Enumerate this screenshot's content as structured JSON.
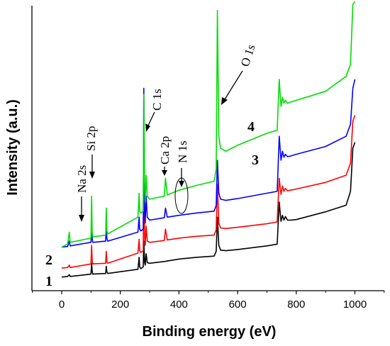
{
  "chart_data": {
    "type": "line",
    "xlabel": "Binding energy (eV)",
    "ylabel": "Intensity (a.u.)",
    "xlim": [
      -100,
      1100
    ],
    "x_ticks": [
      "0",
      "200",
      "400",
      "600",
      "800",
      "1000"
    ],
    "y_ticks_labeled": false,
    "grid": false,
    "legend": "none",
    "series": [
      {
        "name": "1",
        "color": "#000000",
        "x": [
          0,
          20,
          26,
          29,
          100,
          102,
          104,
          106,
          150,
          152,
          154,
          157,
          260,
          264,
          266,
          270,
          278,
          280,
          283,
          285,
          288,
          292,
          300,
          350,
          400,
          460,
          520,
          527,
          531,
          536,
          542,
          560,
          600,
          700,
          735,
          742,
          748,
          753,
          758,
          763,
          770,
          780,
          800,
          900,
          970,
          985,
          993,
          1000
        ],
        "y": [
          0.5,
          0.6,
          0.9,
          0.6,
          1.0,
          2.8,
          1.5,
          1.0,
          1.1,
          2.3,
          1.4,
          1.1,
          1.8,
          3.8,
          2.2,
          1.9,
          2.2,
          6.5,
          2.9,
          2.5,
          4.4,
          2.9,
          2.8,
          3.1,
          3.5,
          3.8,
          4.0,
          4.8,
          10.5,
          5.8,
          5.0,
          4.9,
          5.1,
          5.7,
          6.0,
          13.0,
          9.8,
          10.8,
          10.0,
          10.6,
          10.0,
          10.0,
          10.1,
          11.4,
          12.5,
          14.8,
          22.0,
          23.0
        ]
      },
      {
        "name": "2",
        "color": "#ff0000",
        "x": [
          0,
          20,
          26,
          29,
          100,
          102,
          104,
          106,
          150,
          152,
          154,
          157,
          260,
          264,
          266,
          270,
          278,
          280,
          283,
          285,
          288,
          292,
          300,
          350,
          354,
          360,
          400,
          460,
          520,
          527,
          531,
          536,
          542,
          560,
          600,
          700,
          735,
          742,
          748,
          753,
          758,
          763,
          770,
          780,
          800,
          900,
          970,
          985,
          993,
          1000
        ],
        "y": [
          2.0,
          2.1,
          2.5,
          2.1,
          2.7,
          5.8,
          3.3,
          2.7,
          2.8,
          4.8,
          3.1,
          2.8,
          4.5,
          6.8,
          4.9,
          4.6,
          4.9,
          19.0,
          7.0,
          5.8,
          9.0,
          6.5,
          6.3,
          6.6,
          8.5,
          6.7,
          7.0,
          7.3,
          7.5,
          8.4,
          16.0,
          9.5,
          8.7,
          8.6,
          8.8,
          9.4,
          9.7,
          17.0,
          14.3,
          15.7,
          14.8,
          15.3,
          14.9,
          15.0,
          15.2,
          16.3,
          17.5,
          19.5,
          26.5,
          27.5
        ]
      },
      {
        "name": "3",
        "color": "#0000ff",
        "x": [
          0,
          20,
          26,
          29,
          100,
          102,
          104,
          106,
          150,
          152,
          154,
          157,
          260,
          264,
          266,
          270,
          278,
          280,
          283,
          285,
          288,
          292,
          300,
          350,
          354,
          360,
          400,
          460,
          520,
          527,
          531,
          536,
          542,
          560,
          600,
          700,
          735,
          742,
          748,
          753,
          758,
          763,
          770,
          780,
          800,
          900,
          970,
          985,
          993,
          1000
        ],
        "y": [
          5.5,
          5.6,
          6.5,
          5.7,
          6.3,
          10.0,
          7.0,
          6.3,
          6.5,
          9.0,
          7.0,
          6.5,
          8.0,
          10.5,
          8.5,
          8.2,
          8.5,
          32.0,
          11.0,
          9.5,
          14.0,
          10.5,
          10.0,
          10.4,
          12.0,
          10.5,
          10.8,
          11.2,
          11.5,
          12.5,
          20.0,
          14.5,
          13.5,
          13.3,
          13.6,
          14.5,
          14.8,
          24.0,
          20.0,
          21.5,
          20.5,
          21.0,
          20.6,
          20.7,
          21.0,
          22.3,
          24.0,
          26.0,
          32.0,
          33.5
        ]
      },
      {
        "name": "4",
        "color": "#00dd00",
        "x": [
          0,
          20,
          26,
          29,
          100,
          102,
          104,
          106,
          150,
          152,
          154,
          157,
          260,
          264,
          266,
          270,
          278,
          280,
          283,
          285,
          288,
          292,
          300,
          350,
          354,
          360,
          400,
          460,
          520,
          527,
          531,
          536,
          542,
          560,
          600,
          700,
          735,
          742,
          748,
          753,
          758,
          763,
          770,
          780,
          800,
          900,
          970,
          985,
          993,
          1000
        ],
        "y": [
          5.5,
          6.0,
          8.0,
          6.3,
          7.0,
          14.0,
          8.0,
          7.2,
          7.5,
          12.0,
          8.3,
          7.7,
          10.5,
          14.5,
          11.5,
          11.2,
          11.5,
          31.0,
          15.0,
          13.0,
          17.5,
          14.0,
          13.5,
          14.0,
          17.0,
          14.2,
          15.0,
          15.8,
          16.5,
          18.5,
          45.0,
          24.0,
          22.0,
          21.5,
          22.5,
          24.5,
          25.0,
          33.5,
          29.0,
          30.5,
          29.5,
          30.0,
          29.5,
          29.7,
          30.0,
          31.5,
          34.0,
          36.0,
          46.0,
          46.5
        ]
      }
    ],
    "peak_labels": [
      "Na 2s",
      "Si 2p",
      "C 1s",
      "Ca 2p",
      "N 1s",
      "O 1s"
    ],
    "curve_labels": [
      "1",
      "2",
      "3",
      "4"
    ]
  }
}
